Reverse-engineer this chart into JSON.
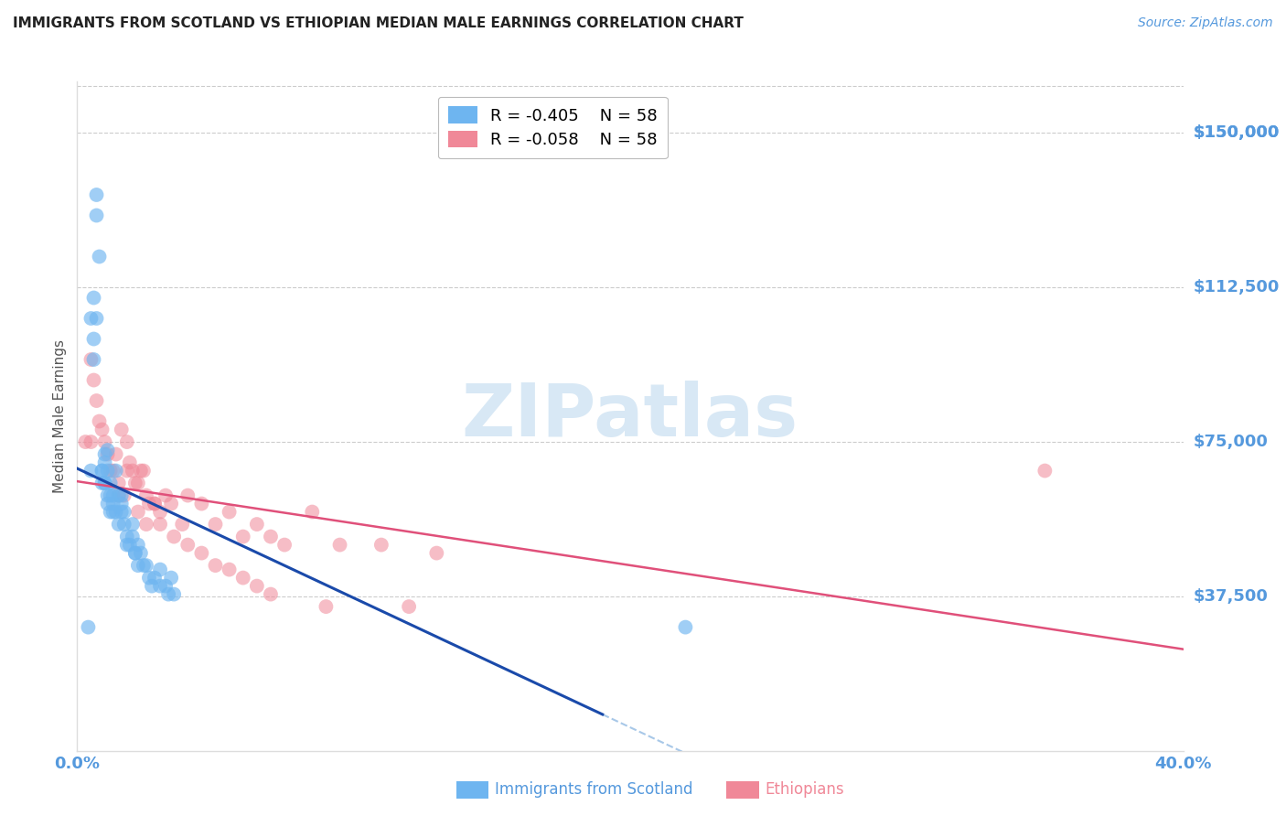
{
  "title": "IMMIGRANTS FROM SCOTLAND VS ETHIOPIAN MEDIAN MALE EARNINGS CORRELATION CHART",
  "source": "Source: ZipAtlas.com",
  "ylabel": "Median Male Earnings",
  "ytick_labels": [
    "$37,500",
    "$75,000",
    "$112,500",
    "$150,000"
  ],
  "ytick_values": [
    37500,
    75000,
    112500,
    150000
  ],
  "ymin": 0,
  "ymax": 162500,
  "xmin": 0.0,
  "xmax": 0.4,
  "legend_blue_r": "-0.405",
  "legend_blue_n": "58",
  "legend_pink_r": "-0.058",
  "legend_pink_n": "58",
  "blue_color": "#6eb5f0",
  "pink_color": "#f08898",
  "blue_line_color": "#1a4aaa",
  "pink_line_color": "#e0507a",
  "dashed_line_color": "#a8c8e8",
  "watermark": "ZIPatlas",
  "watermark_color": "#d8e8f5",
  "axis_label_color": "#5599dd",
  "title_color": "#222222",
  "grid_color": "#cccccc",
  "background_color": "#ffffff",
  "scotland_x": [
    0.004,
    0.005,
    0.005,
    0.006,
    0.006,
    0.006,
    0.007,
    0.007,
    0.007,
    0.008,
    0.009,
    0.009,
    0.009,
    0.01,
    0.01,
    0.01,
    0.01,
    0.011,
    0.011,
    0.011,
    0.011,
    0.012,
    0.012,
    0.012,
    0.013,
    0.013,
    0.013,
    0.014,
    0.014,
    0.015,
    0.015,
    0.016,
    0.016,
    0.016,
    0.017,
    0.017,
    0.018,
    0.018,
    0.019,
    0.02,
    0.02,
    0.021,
    0.021,
    0.022,
    0.022,
    0.023,
    0.024,
    0.025,
    0.026,
    0.027,
    0.028,
    0.03,
    0.03,
    0.032,
    0.033,
    0.034,
    0.035,
    0.22
  ],
  "scotland_y": [
    30000,
    68000,
    105000,
    110000,
    100000,
    95000,
    135000,
    130000,
    105000,
    120000,
    68000,
    68000,
    65000,
    65000,
    72000,
    70000,
    65000,
    60000,
    62000,
    73000,
    68000,
    58000,
    65000,
    62000,
    60000,
    62000,
    58000,
    68000,
    58000,
    55000,
    62000,
    60000,
    58000,
    62000,
    55000,
    58000,
    52000,
    50000,
    50000,
    55000,
    52000,
    48000,
    48000,
    45000,
    50000,
    48000,
    45000,
    45000,
    42000,
    40000,
    42000,
    44000,
    40000,
    40000,
    38000,
    42000,
    38000,
    30000
  ],
  "ethiopia_x": [
    0.003,
    0.005,
    0.006,
    0.007,
    0.008,
    0.009,
    0.01,
    0.011,
    0.012,
    0.013,
    0.014,
    0.015,
    0.016,
    0.017,
    0.018,
    0.019,
    0.02,
    0.021,
    0.022,
    0.023,
    0.024,
    0.025,
    0.026,
    0.028,
    0.03,
    0.032,
    0.034,
    0.038,
    0.04,
    0.045,
    0.05,
    0.055,
    0.06,
    0.065,
    0.07,
    0.075,
    0.085,
    0.095,
    0.11,
    0.13,
    0.015,
    0.018,
    0.022,
    0.025,
    0.028,
    0.03,
    0.035,
    0.04,
    0.045,
    0.05,
    0.055,
    0.06,
    0.065,
    0.07,
    0.09,
    0.12,
    0.35,
    0.005
  ],
  "ethiopia_y": [
    75000,
    95000,
    90000,
    85000,
    80000,
    78000,
    75000,
    72000,
    68000,
    68000,
    72000,
    65000,
    78000,
    62000,
    75000,
    70000,
    68000,
    65000,
    65000,
    68000,
    68000,
    62000,
    60000,
    60000,
    58000,
    62000,
    60000,
    55000,
    62000,
    60000,
    55000,
    58000,
    52000,
    55000,
    52000,
    50000,
    58000,
    50000,
    50000,
    48000,
    62000,
    68000,
    58000,
    55000,
    60000,
    55000,
    52000,
    50000,
    48000,
    45000,
    44000,
    42000,
    40000,
    38000,
    35000,
    35000,
    68000,
    75000
  ]
}
